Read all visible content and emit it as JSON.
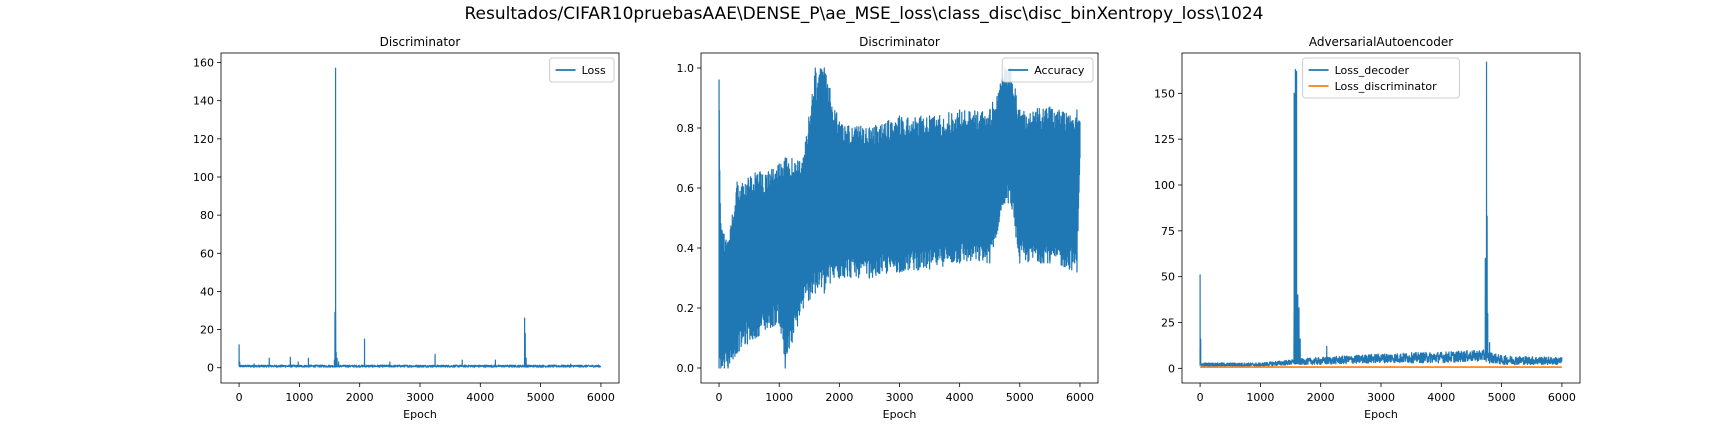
{
  "figure": {
    "title": "Resultados/CIFAR10pruebasAAE\\DENSE_P\\ae_MSE_loss\\class_disc\\disc_binXentropy_loss\\1024"
  },
  "colors": {
    "blue": "#1f77b4",
    "orange": "#ff7f0e"
  },
  "chart_data": [
    {
      "type": "line",
      "title": "Discriminator",
      "xlabel": "Epoch",
      "ylabel": "",
      "xlim": [
        -300,
        6300
      ],
      "ylim": [
        -8,
        165
      ],
      "xticks": [
        0,
        1000,
        2000,
        3000,
        4000,
        5000,
        6000
      ],
      "yticks": [
        0,
        20,
        40,
        60,
        80,
        100,
        120,
        140,
        160
      ],
      "legend": "top-right",
      "series": [
        {
          "name": "Loss",
          "color": "#1f77b4",
          "baseline": [
            0.3,
            1.4
          ],
          "spikes": [
            [
              0,
              12
            ],
            [
              10,
              3
            ],
            [
              250,
              2
            ],
            [
              500,
              5
            ],
            [
              850,
              5.5
            ],
            [
              980,
              3
            ],
            [
              1150,
              5
            ],
            [
              1580,
              4
            ],
            [
              1590,
              29
            ],
            [
              1600,
              157
            ],
            [
              1610,
              8
            ],
            [
              1625,
              5
            ],
            [
              1650,
              3
            ],
            [
              2080,
              15
            ],
            [
              2500,
              3
            ],
            [
              3250,
              7
            ],
            [
              3700,
              4
            ],
            [
              4250,
              4
            ],
            [
              4735,
              26
            ],
            [
              4745,
              18
            ],
            [
              4760,
              5
            ],
            [
              5500,
              2
            ]
          ],
          "x_range": [
            0,
            6000
          ]
        }
      ]
    },
    {
      "type": "line",
      "title": "Discriminator",
      "xlabel": "Epoch",
      "ylabel": "",
      "xlim": [
        -300,
        6300
      ],
      "ylim": [
        -0.05,
        1.05
      ],
      "xticks": [
        0,
        1000,
        2000,
        3000,
        4000,
        5000,
        6000
      ],
      "yticks": [
        0.0,
        0.2,
        0.4,
        0.6,
        0.8,
        1.0
      ],
      "legend": "top-right",
      "series": [
        {
          "name": "Accuracy",
          "color": "#1f77b4",
          "envelope": [
            [
              0,
              0.0,
              0.96
            ],
            [
              30,
              0.0,
              0.48
            ],
            [
              150,
              0.0,
              0.42
            ],
            [
              300,
              0.05,
              0.62
            ],
            [
              600,
              0.1,
              0.65
            ],
            [
              1000,
              0.15,
              0.68
            ],
            [
              1100,
              0.0,
              0.7
            ],
            [
              1400,
              0.2,
              0.7
            ],
            [
              1600,
              0.25,
              1.0
            ],
            [
              1750,
              0.25,
              1.0
            ],
            [
              2000,
              0.3,
              0.82
            ],
            [
              2500,
              0.3,
              0.8
            ],
            [
              3000,
              0.32,
              0.84
            ],
            [
              3500,
              0.33,
              0.84
            ],
            [
              4000,
              0.35,
              0.86
            ],
            [
              4500,
              0.35,
              0.86
            ],
            [
              4750,
              0.55,
              1.0
            ],
            [
              4850,
              0.55,
              1.0
            ],
            [
              5000,
              0.35,
              0.86
            ],
            [
              5500,
              0.35,
              0.87
            ],
            [
              5950,
              0.32,
              0.86
            ],
            [
              6000,
              0.7,
              0.82
            ]
          ],
          "x_range": [
            0,
            6000
          ]
        }
      ]
    },
    {
      "type": "line",
      "title": "AdversarialAutoencoder",
      "xlabel": "Epoch",
      "ylabel": "",
      "xlim": [
        -300,
        6300
      ],
      "ylim": [
        -8,
        172
      ],
      "xticks": [
        0,
        1000,
        2000,
        3000,
        4000,
        5000,
        6000
      ],
      "yticks": [
        0,
        25,
        50,
        75,
        100,
        125,
        150
      ],
      "legend": "top-center",
      "series": [
        {
          "name": "Loss_decoder",
          "color": "#1f77b4",
          "baseline": [
            [
              0,
              1,
              3
            ],
            [
              1000,
              1,
              3
            ],
            [
              1600,
              2,
              5
            ],
            [
              2000,
              2,
              6
            ],
            [
              3000,
              3,
              8
            ],
            [
              4000,
              3,
              9
            ],
            [
              4700,
              4,
              10
            ],
            [
              5000,
              2,
              7
            ],
            [
              6000,
              2,
              6
            ]
          ],
          "spikes": [
            [
              0,
              51
            ],
            [
              10,
              16
            ],
            [
              1560,
              150
            ],
            [
              1580,
              163
            ],
            [
              1600,
              162
            ],
            [
              1620,
              40
            ],
            [
              1640,
              33
            ],
            [
              1660,
              16
            ],
            [
              2100,
              12
            ],
            [
              4730,
              60
            ],
            [
              4750,
              167
            ],
            [
              4760,
              83
            ],
            [
              4770,
              30
            ],
            [
              4800,
              14
            ]
          ],
          "x_range": [
            0,
            6000
          ]
        },
        {
          "name": "Loss_discriminator",
          "color": "#ff7f0e",
          "values_constant": 0.7,
          "x_range": [
            0,
            6000
          ]
        }
      ]
    }
  ]
}
